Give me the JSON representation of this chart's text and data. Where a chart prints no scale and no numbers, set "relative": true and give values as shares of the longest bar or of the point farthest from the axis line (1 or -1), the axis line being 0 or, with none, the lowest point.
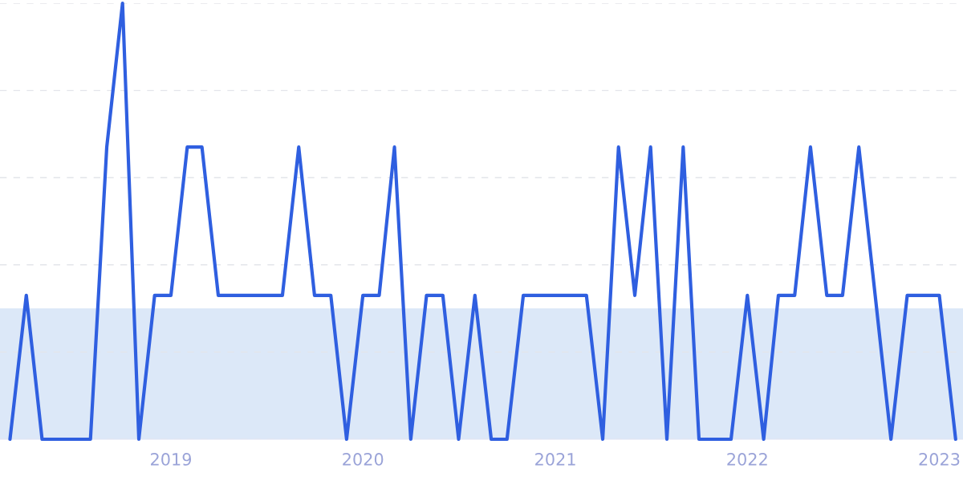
{
  "chart_data": {
    "type": "line",
    "relative": true,
    "x": [
      "2018-03",
      "2018-04",
      "2018-05",
      "2018-06",
      "2018-07",
      "2018-08",
      "2018-09",
      "2018-10",
      "2018-11",
      "2018-12",
      "2019-01",
      "2019-02",
      "2019-03",
      "2019-04",
      "2019-05",
      "2019-06",
      "2019-07",
      "2019-08",
      "2019-09",
      "2019-10",
      "2019-11",
      "2019-12",
      "2020-01",
      "2020-02",
      "2020-03",
      "2020-04",
      "2020-05",
      "2020-06",
      "2020-07",
      "2020-08",
      "2020-09",
      "2020-10",
      "2020-11",
      "2020-12",
      "2021-01",
      "2021-02",
      "2021-03",
      "2021-04",
      "2021-05",
      "2021-06",
      "2021-07",
      "2021-08",
      "2021-09",
      "2021-10",
      "2021-11",
      "2021-12",
      "2022-01",
      "2022-02",
      "2022-03",
      "2022-04",
      "2022-05",
      "2022-06",
      "2022-07",
      "2022-08",
      "2022-09",
      "2022-10",
      "2022-11",
      "2022-12",
      "2023-01",
      "2023-02"
    ],
    "series": [
      {
        "color": "#2f5fe0",
        "values": [
          0,
          0.33,
          0,
          0,
          0,
          0,
          0.67,
          1,
          0,
          0.33,
          0.33,
          0.67,
          0.67,
          0.33,
          0.33,
          0.33,
          0.33,
          0.33,
          0.67,
          0.33,
          0.33,
          0,
          0.33,
          0.33,
          0.67,
          0,
          0.33,
          0.33,
          0,
          0.33,
          0,
          0,
          0.33,
          0.33,
          0.33,
          0.33,
          0.33,
          0,
          0.67,
          0.33,
          0.67,
          0,
          0.67,
          0,
          0,
          0,
          0.33,
          0,
          0.33,
          0.33,
          0.67,
          0.33,
          0.33,
          0.67,
          0.33,
          0,
          0.33,
          0.33,
          0.33,
          0
        ]
      }
    ],
    "xlim": [
      "2018-02-10",
      "2023-02-15"
    ],
    "xticks": [
      {
        "value": "2019",
        "label": "2019"
      },
      {
        "value": "2020",
        "label": "2020"
      },
      {
        "value": "2021",
        "label": "2021"
      },
      {
        "value": "2022",
        "label": "2022"
      },
      {
        "value": "2023",
        "label": "2023"
      }
    ],
    "bands": [
      {
        "axis": "y",
        "from": 0,
        "to": 0.3,
        "color": "#dce8f8"
      }
    ],
    "grid": "y",
    "tick_labels": "x",
    "marker": "none",
    "line_style": "solid"
  }
}
